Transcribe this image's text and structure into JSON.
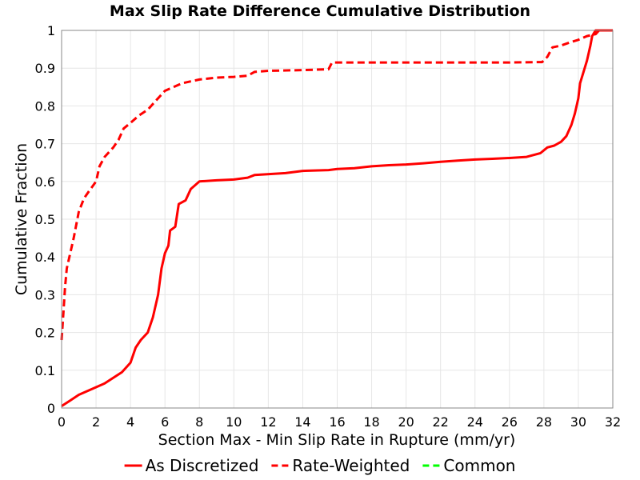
{
  "chart_data": {
    "type": "line",
    "title": "Max Slip Rate Difference Cumulative Distribution",
    "xlabel": "Section Max - Min Slip Rate in Rupture (mm/yr)",
    "ylabel": "Cumulative Fraction",
    "xlim": [
      0,
      32
    ],
    "ylim": [
      0,
      1
    ],
    "x_ticks": [
      "0",
      "2",
      "4",
      "6",
      "8",
      "10",
      "12",
      "14",
      "16",
      "18",
      "20",
      "22",
      "24",
      "26",
      "28",
      "30",
      "32"
    ],
    "y_ticks": [
      "0",
      "0.1",
      "0.2",
      "0.3",
      "0.4",
      "0.5",
      "0.6",
      "0.7",
      "0.8",
      "0.9",
      "1"
    ],
    "grid": true,
    "legend_position": "bottom",
    "series": [
      {
        "name": "As Discretized",
        "color": "#ff0000",
        "dash": "solid",
        "points": [
          [
            0,
            0.005
          ],
          [
            0.5,
            0.02
          ],
          [
            1,
            0.035
          ],
          [
            1.5,
            0.045
          ],
          [
            2,
            0.055
          ],
          [
            2.5,
            0.065
          ],
          [
            3,
            0.08
          ],
          [
            3.5,
            0.095
          ],
          [
            4,
            0.12
          ],
          [
            4.3,
            0.16
          ],
          [
            4.6,
            0.18
          ],
          [
            5,
            0.2
          ],
          [
            5.3,
            0.24
          ],
          [
            5.6,
            0.3
          ],
          [
            5.8,
            0.37
          ],
          [
            6,
            0.41
          ],
          [
            6.2,
            0.43
          ],
          [
            6.3,
            0.47
          ],
          [
            6.6,
            0.48
          ],
          [
            6.8,
            0.54
          ],
          [
            7.2,
            0.55
          ],
          [
            7.5,
            0.58
          ],
          [
            8,
            0.6
          ],
          [
            9,
            0.603
          ],
          [
            10,
            0.605
          ],
          [
            10.8,
            0.61
          ],
          [
            11.2,
            0.617
          ],
          [
            13,
            0.622
          ],
          [
            14,
            0.628
          ],
          [
            15.5,
            0.63
          ],
          [
            16,
            0.633
          ],
          [
            17,
            0.635
          ],
          [
            18,
            0.64
          ],
          [
            19,
            0.643
          ],
          [
            20,
            0.645
          ],
          [
            21,
            0.648
          ],
          [
            22,
            0.652
          ],
          [
            23,
            0.655
          ],
          [
            24,
            0.658
          ],
          [
            25,
            0.66
          ],
          [
            26,
            0.662
          ],
          [
            27,
            0.665
          ],
          [
            27.8,
            0.675
          ],
          [
            28.2,
            0.69
          ],
          [
            28.6,
            0.695
          ],
          [
            29,
            0.705
          ],
          [
            29.3,
            0.72
          ],
          [
            29.6,
            0.75
          ],
          [
            29.8,
            0.78
          ],
          [
            30,
            0.82
          ],
          [
            30.1,
            0.86
          ],
          [
            30.3,
            0.89
          ],
          [
            30.5,
            0.92
          ],
          [
            30.7,
            0.96
          ],
          [
            30.8,
            0.985
          ],
          [
            31,
            1.0
          ],
          [
            32,
            1.0
          ]
        ]
      },
      {
        "name": "Rate-Weighted",
        "color": "#ff0000",
        "dash": "dashed",
        "points": [
          [
            0,
            0.18
          ],
          [
            0.1,
            0.25
          ],
          [
            0.2,
            0.32
          ],
          [
            0.3,
            0.37
          ],
          [
            0.5,
            0.41
          ],
          [
            0.7,
            0.45
          ],
          [
            1,
            0.52
          ],
          [
            1.3,
            0.555
          ],
          [
            1.6,
            0.575
          ],
          [
            2,
            0.6
          ],
          [
            2.2,
            0.64
          ],
          [
            2.5,
            0.665
          ],
          [
            3,
            0.69
          ],
          [
            3.3,
            0.71
          ],
          [
            3.6,
            0.74
          ],
          [
            4,
            0.755
          ],
          [
            4.5,
            0.775
          ],
          [
            5,
            0.79
          ],
          [
            5.5,
            0.815
          ],
          [
            6,
            0.84
          ],
          [
            6.5,
            0.85
          ],
          [
            7,
            0.86
          ],
          [
            7.5,
            0.865
          ],
          [
            8,
            0.87
          ],
          [
            9,
            0.875
          ],
          [
            10,
            0.877
          ],
          [
            10.8,
            0.88
          ],
          [
            11.2,
            0.89
          ],
          [
            12,
            0.893
          ],
          [
            14,
            0.895
          ],
          [
            15.5,
            0.897
          ],
          [
            15.7,
            0.915
          ],
          [
            18,
            0.915
          ],
          [
            22,
            0.915
          ],
          [
            26,
            0.915
          ],
          [
            27.9,
            0.916
          ],
          [
            28.2,
            0.93
          ],
          [
            28.5,
            0.955
          ],
          [
            29,
            0.96
          ],
          [
            29.5,
            0.968
          ],
          [
            30,
            0.975
          ],
          [
            30.5,
            0.985
          ],
          [
            31,
            0.99
          ],
          [
            31.2,
            1.0
          ],
          [
            32,
            1.0
          ]
        ]
      },
      {
        "name": "Common",
        "color": "#00ff00",
        "dash": "dashed",
        "points": []
      }
    ]
  }
}
